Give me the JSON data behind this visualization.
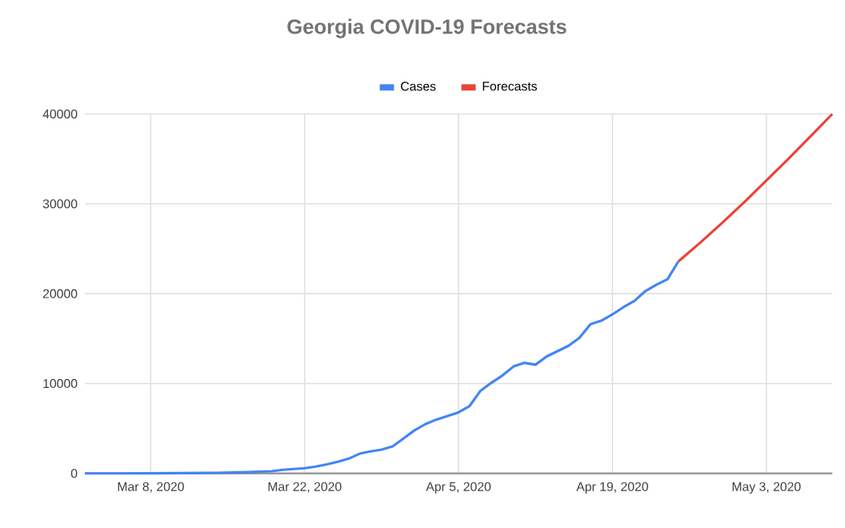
{
  "chart_data": {
    "type": "line",
    "title": "Georgia COVID-19 Forecasts",
    "xlim": [
      "2020-03-02",
      "2020-05-09"
    ],
    "xticks": [
      {
        "value": "2020-03-08",
        "label": "Mar 8, 2020"
      },
      {
        "value": "2020-03-22",
        "label": "Mar 22, 2020"
      },
      {
        "value": "2020-04-05",
        "label": "Apr 5, 2020"
      },
      {
        "value": "2020-04-19",
        "label": "Apr 19, 2020"
      },
      {
        "value": "2020-05-03",
        "label": "May 3, 2020"
      }
    ],
    "ylim": [
      0,
      40000
    ],
    "yticks": [
      0,
      10000,
      20000,
      30000,
      40000
    ],
    "grid": true,
    "legend": "top",
    "marker": "none",
    "line_style": "solid",
    "series": [
      {
        "name": "Cases",
        "color": "#4285f4",
        "x": [
          "2020-03-02",
          "2020-03-05",
          "2020-03-08",
          "2020-03-11",
          "2020-03-14",
          "2020-03-17",
          "2020-03-19",
          "2020-03-20",
          "2020-03-22",
          "2020-03-23",
          "2020-03-24",
          "2020-03-25",
          "2020-03-26",
          "2020-03-27",
          "2020-03-28",
          "2020-03-29",
          "2020-03-30",
          "2020-03-31",
          "2020-04-01",
          "2020-04-02",
          "2020-04-03",
          "2020-04-04",
          "2020-04-05",
          "2020-04-06",
          "2020-04-07",
          "2020-04-08",
          "2020-04-09",
          "2020-04-10",
          "2020-04-11",
          "2020-04-12",
          "2020-04-13",
          "2020-04-14",
          "2020-04-15",
          "2020-04-16",
          "2020-04-17",
          "2020-04-18",
          "2020-04-19",
          "2020-04-20",
          "2020-04-21",
          "2020-04-22",
          "2020-04-23",
          "2020-04-24",
          "2020-04-25"
        ],
        "values": [
          0,
          0,
          10,
          30,
          70,
          150,
          250,
          400,
          585,
          760,
          1000,
          1300,
          1640,
          2200,
          2450,
          2650,
          3000,
          3900,
          4800,
          5500,
          6000,
          6400,
          6800,
          7500,
          9200,
          10100,
          10900,
          11900,
          12300,
          12100,
          13000,
          13600,
          14200,
          15100,
          16600,
          17000,
          17700,
          18500,
          19200,
          20300,
          21000,
          21600,
          23600
        ]
      },
      {
        "name": "Forecasts",
        "color": "#ea4335",
        "x": [
          "2020-04-25",
          "2020-04-27",
          "2020-04-29",
          "2020-05-01",
          "2020-05-03",
          "2020-05-05",
          "2020-05-07",
          "2020-05-09"
        ],
        "values": [
          23600,
          25700,
          27900,
          30200,
          32600,
          35000,
          37500,
          40000
        ]
      }
    ]
  }
}
